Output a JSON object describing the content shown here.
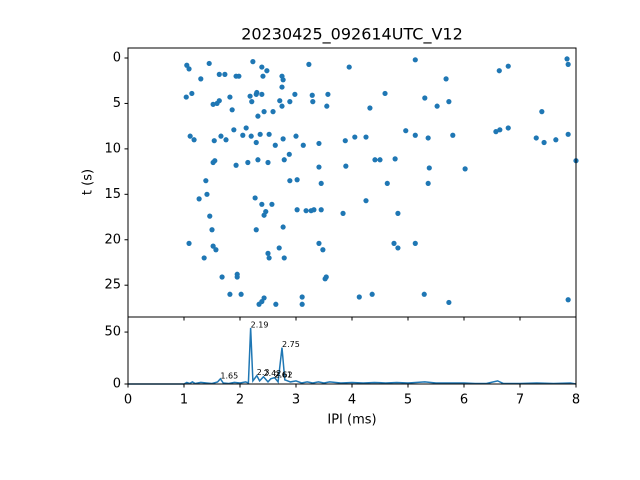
{
  "chart_data": [
    {
      "type": "scatter",
      "title": "20230425_092614UTC_V12",
      "y_label": "t (s)",
      "color": "#1f77b4",
      "xlim": [
        0,
        8
      ],
      "xticks": [
        0,
        1,
        2,
        3,
        4,
        5,
        6,
        7,
        8
      ],
      "ylim": [
        28.5,
        -1.1
      ],
      "yticks": [
        0,
        5,
        10,
        15,
        20,
        25
      ],
      "x": [
        1.05,
        1.09,
        1.04,
        1.14,
        1.3,
        1.45,
        1.63,
        1.73,
        1.93,
        1.98,
        2.23,
        2.39,
        2.41,
        2.48,
        2.75,
        2.77,
        2.75,
        3.23,
        3.95,
        5.13,
        5.68,
        6.63,
        6.79,
        7.84,
        7.86,
        1.59,
        1.52,
        1.63,
        1.82,
        1.86,
        2.18,
        2.21,
        2.29,
        2.3,
        2.39,
        2.32,
        2.43,
        2.59,
        2.71,
        2.75,
        2.89,
        2.98,
        3.29,
        3.57,
        3.3,
        3.55,
        4.32,
        4.59,
        5.3,
        5.52,
        5.73,
        7.39,
        1.11,
        1.18,
        1.54,
        1.66,
        1.75,
        1.89,
        2.05,
        2.11,
        2.2,
        2.29,
        2.36,
        2.52,
        2.63,
        2.77,
        3.0,
        3.13,
        3.41,
        3.88,
        4.05,
        4.25,
        4.96,
        5.13,
        5.36,
        5.8,
        6.57,
        6.64,
        6.79,
        7.29,
        7.43,
        7.64,
        7.86,
        8.0,
        1.55,
        1.52,
        1.93,
        2.14,
        2.32,
        2.5,
        2.79,
        2.88,
        3.41,
        3.89,
        4.41,
        4.5,
        4.77,
        5.38,
        6.02,
        1.39,
        1.41,
        1.27,
        2.27,
        2.39,
        2.46,
        2.43,
        2.57,
        2.89,
        3.02,
        3.45,
        4.63,
        5.36,
        3.02,
        3.18,
        3.27,
        3.32,
        3.45,
        3.84,
        4.25,
        4.82,
        1.46,
        1.5,
        2.29,
        2.77,
        1.09,
        1.52,
        1.57,
        1.36,
        2.5,
        2.52,
        2.7,
        2.79,
        3.41,
        3.48,
        4.75,
        4.82,
        5.13,
        1.68,
        1.95,
        1.95,
        3.54,
        3.52,
        1.82,
        2.02,
        2.43,
        2.39,
        2.34,
        2.64,
        3.11,
        3.11,
        4.13,
        4.36,
        5.29,
        5.73,
        7.86
      ],
      "values": [
        0.8,
        1.2,
        4.3,
        3.9,
        2.3,
        0.6,
        1.8,
        1.8,
        2.0,
        2.0,
        0.4,
        1.0,
        2.0,
        1.4,
        2.0,
        2.4,
        3.2,
        0.7,
        1.0,
        0.2,
        2.3,
        1.4,
        0.9,
        0.1,
        0.7,
        5.0,
        5.1,
        4.7,
        4.3,
        5.7,
        4.2,
        4.8,
        4.0,
        3.8,
        4.0,
        6.4,
        5.9,
        5.9,
        4.7,
        5.3,
        4.8,
        4.0,
        4.1,
        4.0,
        4.8,
        5.3,
        5.5,
        3.9,
        4.4,
        5.3,
        4.8,
        5.9,
        8.6,
        9.0,
        9.1,
        8.6,
        9.0,
        7.9,
        8.5,
        7.7,
        8.6,
        9.3,
        8.4,
        8.4,
        9.6,
        8.9,
        8.6,
        9.6,
        9.4,
        9.1,
        8.7,
        8.7,
        8.0,
        8.5,
        8.8,
        8.5,
        8.1,
        7.9,
        7.7,
        8.8,
        9.3,
        9.0,
        8.4,
        11.3,
        11.3,
        11.5,
        11.8,
        11.5,
        11.2,
        11.5,
        11.2,
        10.6,
        12.0,
        11.9,
        11.2,
        11.2,
        11.1,
        12.1,
        12.2,
        13.5,
        15.0,
        15.5,
        15.4,
        16.1,
        16.9,
        17.3,
        16.1,
        13.5,
        13.4,
        13.8,
        13.8,
        13.8,
        16.7,
        16.8,
        16.8,
        16.7,
        16.7,
        17.1,
        15.7,
        17.1,
        17.4,
        18.9,
        18.9,
        18.6,
        20.4,
        20.7,
        21.1,
        22.0,
        21.5,
        22.0,
        20.9,
        22.0,
        20.4,
        21.1,
        20.4,
        20.9,
        20.4,
        24.1,
        23.8,
        24.1,
        24.1,
        24.3,
        26.0,
        26.0,
        26.4,
        26.8,
        27.1,
        27.1,
        26.3,
        27.1,
        26.3,
        26.0,
        26.0,
        26.9,
        26.6
      ]
    },
    {
      "type": "line",
      "x_label": "IPI (ms)",
      "color": "#1f77b4",
      "xlim": [
        0,
        8
      ],
      "xticks": [
        0,
        1,
        2,
        3,
        4,
        5,
        6,
        7,
        8
      ],
      "ylim": [
        0,
        64.5
      ],
      "yticks": [
        0,
        50
      ],
      "x": [
        0,
        1.0,
        1.05,
        1.1,
        1.15,
        1.2,
        1.3,
        1.4,
        1.5,
        1.6,
        1.65,
        1.7,
        1.8,
        1.9,
        2.0,
        2.1,
        2.15,
        2.19,
        2.23,
        2.3,
        2.35,
        2.42,
        2.5,
        2.55,
        2.61,
        2.62,
        2.68,
        2.75,
        2.8,
        2.9,
        3.0,
        3.1,
        3.2,
        3.3,
        3.4,
        3.5,
        3.6,
        3.8,
        4.0,
        4.2,
        4.4,
        4.6,
        4.8,
        5.0,
        5.3,
        5.5,
        5.8,
        6.0,
        6.2,
        6.4,
        6.6,
        6.7,
        7.0,
        7.3,
        7.6,
        7.9,
        8.0
      ],
      "values": [
        0,
        0,
        1.5,
        0.5,
        2,
        0.5,
        1.5,
        1,
        0.5,
        2,
        5,
        1,
        0.5,
        1.5,
        1,
        2,
        1,
        54,
        3,
        8,
        3,
        7,
        2,
        5,
        6,
        6,
        2,
        35,
        4,
        2,
        3,
        1,
        2,
        1,
        2,
        1,
        2,
        1,
        1.5,
        1,
        1.5,
        1,
        1.5,
        1,
        2,
        1,
        1,
        1,
        0.5,
        0.5,
        3,
        0.5,
        0.5,
        1,
        0.5,
        1,
        0
      ],
      "annotations": [
        {
          "x": 1.65,
          "y": 5,
          "text": "1.65"
        },
        {
          "x": 2.19,
          "y": 54,
          "text": "2.19"
        },
        {
          "x": 2.3,
          "y": 8,
          "text": "2.3"
        },
        {
          "x": 2.42,
          "y": 7,
          "text": "2.42"
        },
        {
          "x": 2.61,
          "y": 6,
          "text": "2.61"
        },
        {
          "x": 2.62,
          "y": 6,
          "text": "2.62"
        },
        {
          "x": 2.75,
          "y": 35,
          "text": "2.75"
        }
      ]
    }
  ]
}
